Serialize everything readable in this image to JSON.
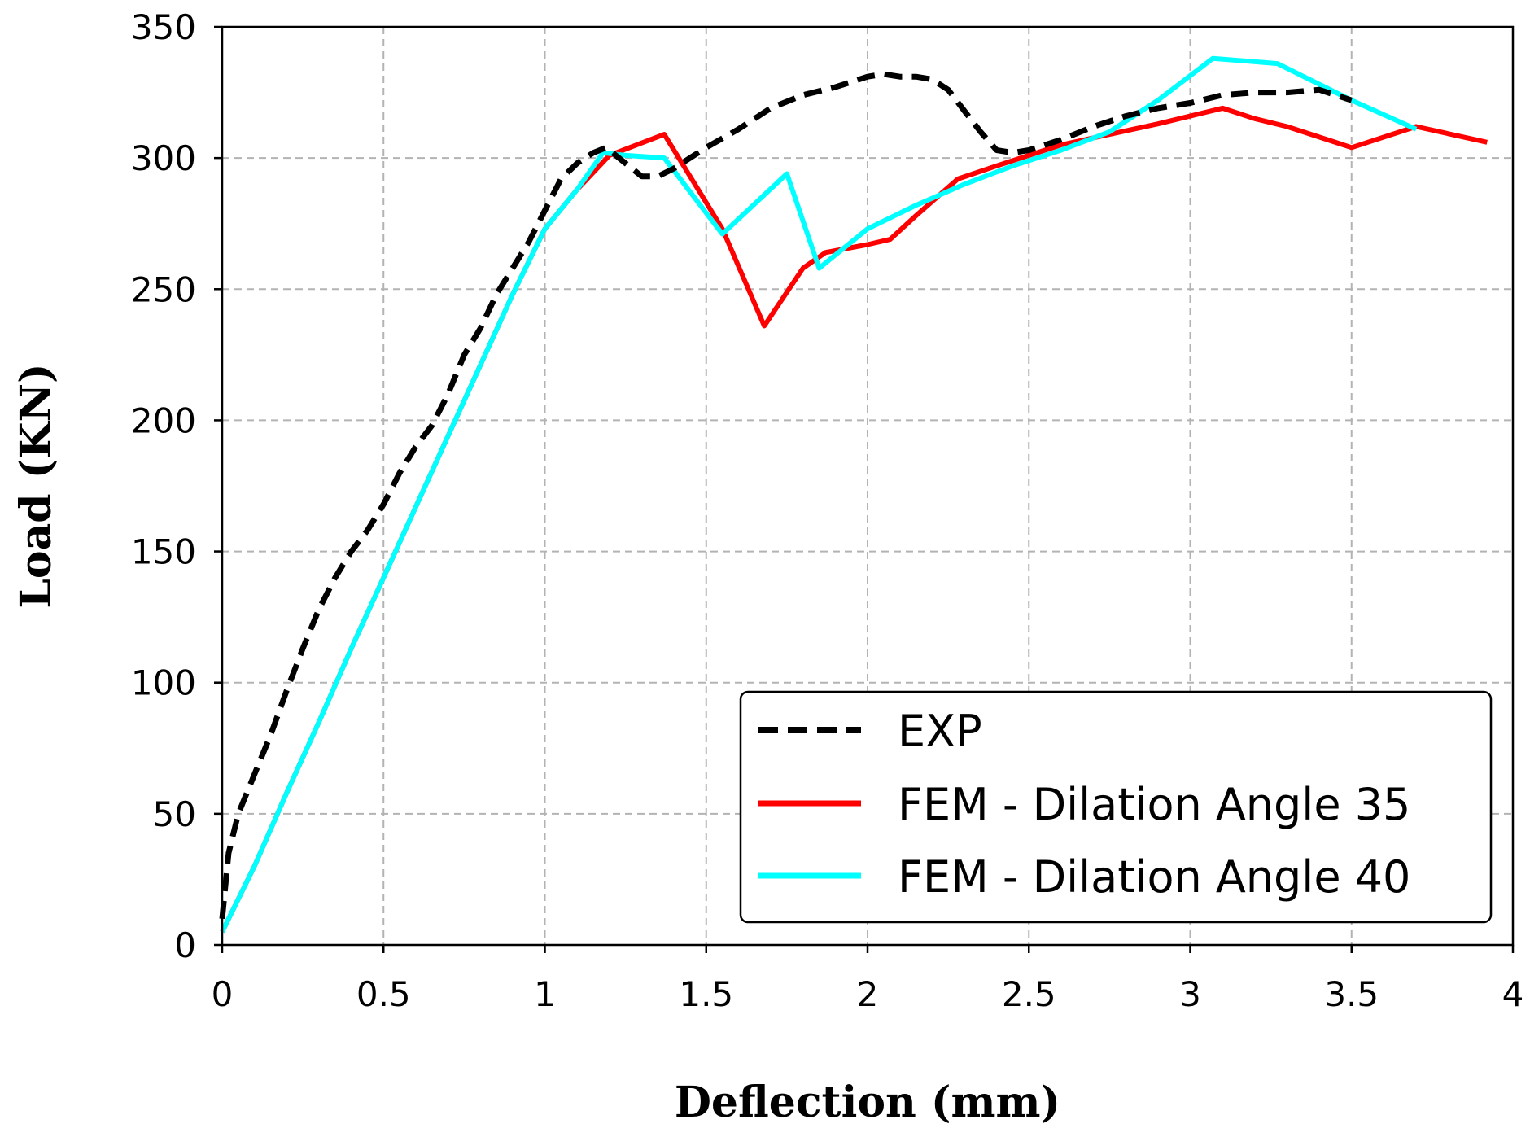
{
  "chart_data": {
    "type": "line",
    "title": "",
    "xlabel": "Deflection (mm)",
    "ylabel": "Load (KN)",
    "xlim": [
      0,
      4
    ],
    "ylim": [
      0,
      350
    ],
    "xticks": [
      0,
      0.5,
      1,
      1.5,
      2,
      2.5,
      3,
      3.5,
      4
    ],
    "xtick_labels": [
      "0",
      "0.5",
      "1",
      "1.5",
      "2",
      "2.5",
      "3",
      "3.5",
      "4"
    ],
    "yticks": [
      0,
      50,
      100,
      150,
      200,
      250,
      300,
      350
    ],
    "ytick_labels": [
      "0",
      "50",
      "100",
      "150",
      "200",
      "250",
      "300",
      "350"
    ],
    "grid": true,
    "legend_position": "lower-right",
    "series": [
      {
        "name": "EXP",
        "color": "#000000",
        "style": "dashed",
        "x": [
          0,
          0.02,
          0.05,
          0.1,
          0.15,
          0.2,
          0.25,
          0.3,
          0.35,
          0.4,
          0.45,
          0.5,
          0.55,
          0.6,
          0.65,
          0.7,
          0.75,
          0.8,
          0.85,
          0.9,
          0.95,
          1.0,
          1.05,
          1.1,
          1.15,
          1.19,
          1.25,
          1.3,
          1.35,
          1.4,
          1.45,
          1.5,
          1.6,
          1.7,
          1.8,
          1.9,
          2.0,
          2.05,
          2.1,
          2.15,
          2.2,
          2.25,
          2.3,
          2.35,
          2.4,
          2.45,
          2.5,
          2.6,
          2.7,
          2.8,
          2.9,
          3.0,
          3.1,
          3.2,
          3.3,
          3.4,
          3.5
        ],
        "y": [
          10,
          35,
          50,
          65,
          80,
          97,
          113,
          128,
          140,
          150,
          158,
          168,
          180,
          190,
          198,
          210,
          225,
          235,
          248,
          258,
          268,
          280,
          292,
          298,
          302,
          304,
          298,
          293,
          293,
          296,
          300,
          304,
          311,
          319,
          324,
          327,
          331,
          332,
          331,
          331,
          330,
          326,
          318,
          310,
          303,
          302,
          303,
          307,
          312,
          316,
          319,
          321,
          324,
          325,
          325,
          326,
          322
        ]
      },
      {
        "name": "FEM - Dilation Angle 35",
        "color": "#ff0000",
        "style": "solid",
        "x": [
          0,
          0.1,
          0.2,
          0.3,
          0.4,
          0.5,
          0.6,
          0.7,
          0.8,
          0.9,
          1.0,
          1.1,
          1.2,
          1.37,
          1.55,
          1.68,
          1.8,
          1.87,
          2.0,
          2.07,
          2.15,
          2.28,
          2.4,
          2.5,
          2.6,
          2.75,
          2.9,
          3.0,
          3.1,
          3.2,
          3.3,
          3.5,
          3.7,
          3.92
        ],
        "y": [
          5,
          30,
          58,
          85,
          113,
          140,
          167,
          194,
          221,
          248,
          273,
          288,
          301,
          309,
          273,
          236,
          258,
          264,
          267,
          269,
          278,
          292,
          297,
          301,
          305,
          309,
          313,
          316,
          319,
          315,
          312,
          304,
          312,
          306
        ]
      },
      {
        "name": "FEM - Dilation Angle 40",
        "color": "#00ffff",
        "style": "solid",
        "x": [
          0,
          0.1,
          0.2,
          0.3,
          0.4,
          0.5,
          0.6,
          0.7,
          0.8,
          0.9,
          1.0,
          1.1,
          1.18,
          1.25,
          1.37,
          1.55,
          1.75,
          1.85,
          2.0,
          2.15,
          2.3,
          2.45,
          2.6,
          2.75,
          2.9,
          3.07,
          3.27,
          3.5,
          3.7
        ],
        "y": [
          5,
          30,
          58,
          85,
          113,
          140,
          167,
          194,
          221,
          248,
          273,
          288,
          302,
          301,
          300,
          271,
          294,
          258,
          273,
          282,
          290,
          297,
          303,
          310,
          322,
          338,
          336,
          322,
          311
        ]
      }
    ]
  }
}
